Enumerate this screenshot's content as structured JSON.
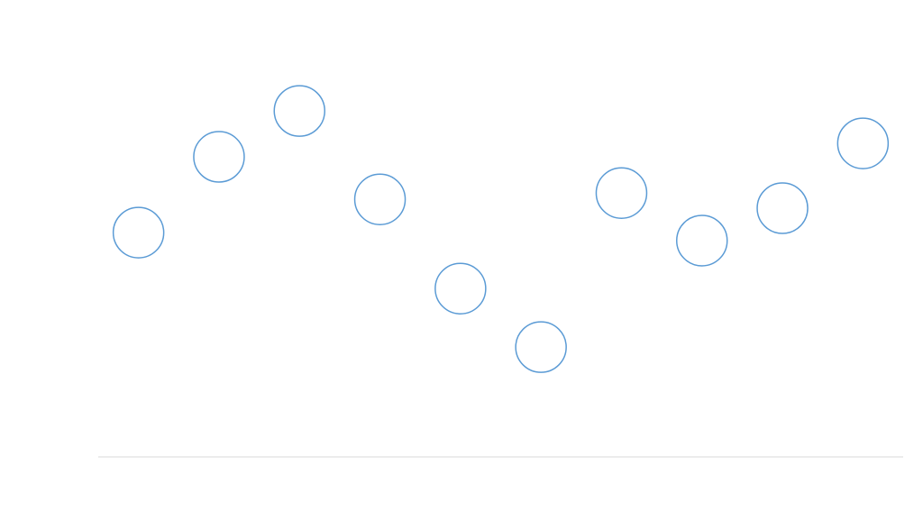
{
  "chart_data": {
    "type": "scatter",
    "categories": [
      null,
      null,
      null,
      null,
      null,
      null,
      null,
      null,
      null,
      null
    ],
    "values": [
      53.3,
      71.3,
      82.2,
      61.2,
      40.0,
      26.1,
      62.7,
      51.4,
      59.1,
      74.5
    ],
    "color": "#5b9bd5",
    "ylim": [
      0,
      100
    ]
  }
}
